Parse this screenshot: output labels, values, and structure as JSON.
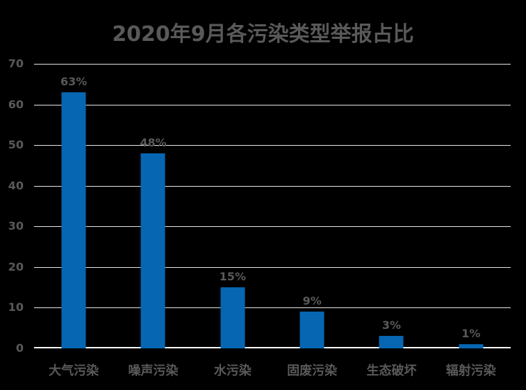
{
  "chart_data": {
    "type": "bar",
    "title": "2020年9月各污染类型举报占比",
    "categories": [
      "大气污染",
      "噪声污染",
      "水污染",
      "固废污染",
      "生态破坏",
      "辐射污染"
    ],
    "values": [
      63,
      48,
      15,
      9,
      3,
      1
    ],
    "data_labels": [
      "63%",
      "48%",
      "15%",
      "9%",
      "3%",
      "1%"
    ],
    "xlabel": "",
    "ylabel": "",
    "ylim": [
      0,
      70
    ],
    "yticks": [
      0,
      10,
      20,
      30,
      40,
      50,
      60,
      70
    ],
    "grid": true,
    "legend": "none",
    "colors": {
      "background": "#000000",
      "bar": "#0666B2",
      "text": "#595959",
      "gridline": "#E8E8E8",
      "axis_line": "#FFFFFF"
    }
  }
}
